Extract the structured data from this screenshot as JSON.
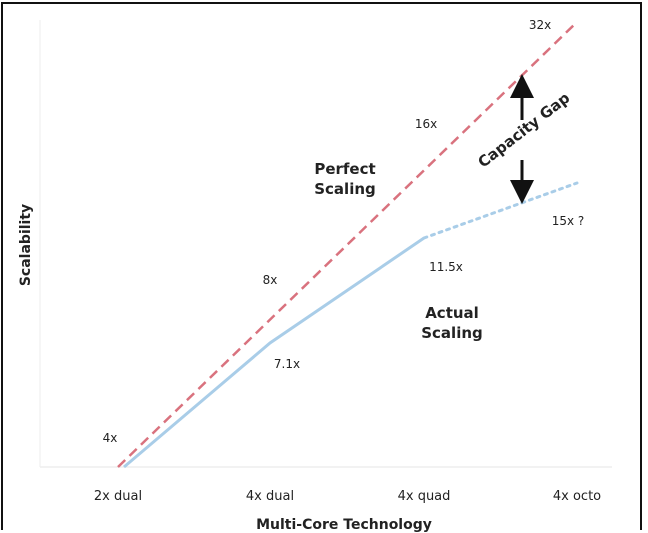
{
  "chart_data": {
    "type": "line",
    "xlabel": "Multi-Core Technology",
    "ylabel": "Scalability",
    "categories": [
      "2x dual",
      "4x dual",
      "4x quad",
      "4x octo"
    ],
    "ylim": [
      4,
      32
    ],
    "grid": false,
    "series": [
      {
        "name": "Perfect Scaling",
        "style": "dashed",
        "color": "#d9727e",
        "values": [
          4,
          8,
          16,
          32
        ],
        "point_labels": [
          "4x",
          "8x",
          "16x",
          "32x"
        ]
      },
      {
        "name": "Actual Scaling",
        "style": "solid-then-dotted",
        "color": "#a9cde8",
        "values": [
          4,
          7.1,
          11.5,
          15
        ],
        "point_labels": [
          "",
          "7.1x",
          "11.5x",
          "15x ?"
        ],
        "projected_from_index": 2
      }
    ],
    "annotations": {
      "gap_label": "Capacity Gap"
    }
  }
}
